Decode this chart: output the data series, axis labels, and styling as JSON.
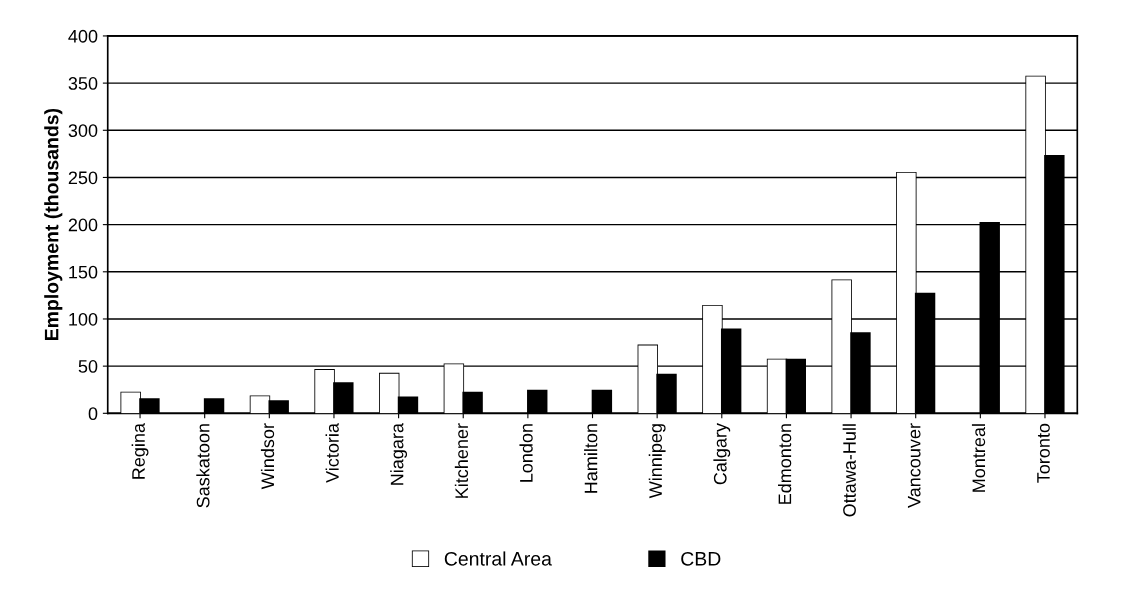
{
  "chart_data": {
    "type": "bar",
    "ylabel": "Employment (thousands)",
    "categories": [
      "Regina",
      "Saskatoon",
      "Windsor",
      "Victoria",
      "Niagara",
      "Kitchener",
      "London",
      "Hamilton",
      "Winnipeg",
      "Calgary",
      "Edmonton",
      "Ottawa-Hull",
      "Vancouver",
      "Montreal",
      "Toronto"
    ],
    "series": [
      {
        "name": "Central Area",
        "color": "#ffffff",
        "values": [
          22,
          null,
          18,
          46,
          42,
          52,
          null,
          null,
          72,
          114,
          57,
          141,
          255,
          null,
          357
        ]
      },
      {
        "name": "CBD",
        "color": "#000000",
        "values": [
          15,
          15,
          13,
          32,
          17,
          22,
          24,
          24,
          41,
          89,
          57,
          85,
          127,
          202,
          273
        ]
      }
    ],
    "ylim": [
      0,
      400
    ],
    "yticks": [
      0,
      50,
      100,
      150,
      200,
      250,
      300,
      350,
      400
    ],
    "grid": "y",
    "legend": "bottom"
  }
}
